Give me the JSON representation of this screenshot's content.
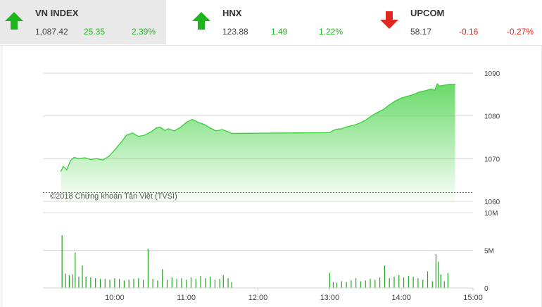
{
  "tickers": [
    {
      "name": "VN INDEX",
      "value": "1,087.42",
      "change": "25.35",
      "percent": "2.39%",
      "direction": "up",
      "icon": "arrow-up-icon",
      "color": "#1fb51f",
      "active": true
    },
    {
      "name": "HNX",
      "value": "123.88",
      "change": "1.49",
      "percent": "1.22%",
      "direction": "up",
      "icon": "arrow-up-icon",
      "color": "#1fb51f",
      "active": false
    },
    {
      "name": "UPCOM",
      "value": "58.17",
      "change": "-0.16",
      "percent": "-0.27%",
      "direction": "down",
      "icon": "arrow-down-icon",
      "color": "#e0261f",
      "active": false
    }
  ],
  "watermark": "©2018 Chứng khoán Tân Việt (TVSI)",
  "chart_data": [
    {
      "type": "area",
      "name": "price",
      "xlim": [
        "09:00",
        "15:00"
      ],
      "ylim": [
        1060,
        1090
      ],
      "y_ticks": [
        "1090",
        "1080",
        "1070",
        "1060"
      ],
      "y_tick_values": [
        1090,
        1080,
        1070,
        1060
      ],
      "reference_line": 1062.07,
      "grid": true,
      "color": "#3fd03f",
      "points": [
        [
          "09:15",
          1067.0
        ],
        [
          "09:17",
          1068.2
        ],
        [
          "09:20",
          1067.4
        ],
        [
          "09:23",
          1069.5
        ],
        [
          "09:26",
          1070.3
        ],
        [
          "09:30",
          1070.0
        ],
        [
          "09:35",
          1070.2
        ],
        [
          "09:40",
          1069.8
        ],
        [
          "09:45",
          1070.0
        ],
        [
          "09:50",
          1069.7
        ],
        [
          "09:55",
          1070.5
        ],
        [
          "10:00",
          1072.0
        ],
        [
          "10:03",
          1073.0
        ],
        [
          "10:06",
          1074.0
        ],
        [
          "10:10",
          1075.5
        ],
        [
          "10:15",
          1076.0
        ],
        [
          "10:20",
          1075.2
        ],
        [
          "10:25",
          1075.5
        ],
        [
          "10:30",
          1076.2
        ],
        [
          "10:35",
          1077.2
        ],
        [
          "10:38",
          1077.4
        ],
        [
          "10:42",
          1076.6
        ],
        [
          "10:45",
          1077.0
        ],
        [
          "10:50",
          1076.5
        ],
        [
          "10:55",
          1077.3
        ],
        [
          "11:00",
          1078.5
        ],
        [
          "11:05",
          1079.2
        ],
        [
          "11:10",
          1078.5
        ],
        [
          "11:15",
          1078.0
        ],
        [
          "11:20",
          1077.2
        ],
        [
          "11:25",
          1076.5
        ],
        [
          "11:30",
          1076.8
        ],
        [
          "11:35",
          1076.3
        ],
        [
          "11:38",
          1075.9
        ],
        [
          "13:00",
          1076.1
        ],
        [
          "13:03",
          1076.6
        ],
        [
          "13:06",
          1076.9
        ],
        [
          "13:10",
          1077.0
        ],
        [
          "13:15",
          1077.5
        ],
        [
          "13:20",
          1077.8
        ],
        [
          "13:25",
          1078.3
        ],
        [
          "13:30",
          1079.0
        ],
        [
          "13:35",
          1080.0
        ],
        [
          "13:40",
          1080.8
        ],
        [
          "13:45",
          1081.5
        ],
        [
          "13:50",
          1082.6
        ],
        [
          "13:55",
          1083.5
        ],
        [
          "14:00",
          1084.2
        ],
        [
          "14:05",
          1084.6
        ],
        [
          "14:10",
          1085.0
        ],
        [
          "14:15",
          1085.6
        ],
        [
          "14:20",
          1085.9
        ],
        [
          "14:25",
          1086.3
        ],
        [
          "14:28",
          1086.0
        ],
        [
          "14:30",
          1087.5
        ],
        [
          "14:32",
          1087.0
        ],
        [
          "14:40",
          1087.4
        ],
        [
          "14:45",
          1087.4
        ]
      ]
    },
    {
      "type": "bar",
      "name": "volume",
      "xlim": [
        "09:00",
        "15:00"
      ],
      "ylim": [
        0,
        10000000
      ],
      "y_ticks": [
        "10M",
        "5M",
        "0"
      ],
      "y_tick_values": [
        10000000,
        5000000,
        0
      ],
      "x_ticks": [
        "10:00",
        "11:00",
        "12:00",
        "13:00",
        "14:00",
        "15:00"
      ],
      "x_tick_values": [
        "10:00",
        "11:00",
        "12:00",
        "13:00",
        "14:00",
        "15:00"
      ],
      "color": "#1fa81f",
      "bars": [
        [
          "09:16",
          7000000
        ],
        [
          "09:19",
          1900000
        ],
        [
          "09:22",
          1700000
        ],
        [
          "09:25",
          1800000
        ],
        [
          "09:27",
          4700000
        ],
        [
          "09:30",
          1500000
        ],
        [
          "09:33",
          3000000
        ],
        [
          "09:36",
          1500000
        ],
        [
          "09:40",
          1400000
        ],
        [
          "09:44",
          1300000
        ],
        [
          "09:48",
          1200000
        ],
        [
          "09:52",
          1200000
        ],
        [
          "09:56",
          1100000
        ],
        [
          "10:00",
          1300000
        ],
        [
          "10:04",
          1200000
        ],
        [
          "10:08",
          1000000
        ],
        [
          "10:12",
          1100000
        ],
        [
          "10:16",
          1200000
        ],
        [
          "10:20",
          1300000
        ],
        [
          "10:24",
          1100000
        ],
        [
          "10:28",
          5200000
        ],
        [
          "10:32",
          1200000
        ],
        [
          "10:36",
          1000000
        ],
        [
          "10:40",
          2500000
        ],
        [
          "10:44",
          1100000
        ],
        [
          "10:48",
          1400000
        ],
        [
          "10:52",
          1200000
        ],
        [
          "10:56",
          1300000
        ],
        [
          "11:00",
          1100000
        ],
        [
          "11:04",
          1400000
        ],
        [
          "11:08",
          1200000
        ],
        [
          "11:12",
          1600000
        ],
        [
          "11:16",
          1300000
        ],
        [
          "11:20",
          1500000
        ],
        [
          "11:24",
          1100000
        ],
        [
          "11:28",
          1200000
        ],
        [
          "11:31",
          1700000
        ],
        [
          "11:35",
          1300000
        ],
        [
          "11:38",
          800000
        ],
        [
          "13:00",
          2000000
        ],
        [
          "13:03",
          800000
        ],
        [
          "13:06",
          700000
        ],
        [
          "13:10",
          900000
        ],
        [
          "13:14",
          800000
        ],
        [
          "13:18",
          1000000
        ],
        [
          "13:22",
          1300000
        ],
        [
          "13:26",
          900000
        ],
        [
          "13:30",
          1000000
        ],
        [
          "13:34",
          1200000
        ],
        [
          "13:38",
          1100000
        ],
        [
          "13:42",
          1400000
        ],
        [
          "13:46",
          3000000
        ],
        [
          "13:50",
          1300000
        ],
        [
          "13:54",
          1500000
        ],
        [
          "13:58",
          1700000
        ],
        [
          "14:02",
          1400000
        ],
        [
          "14:06",
          1600000
        ],
        [
          "14:10",
          1500000
        ],
        [
          "14:14",
          1300000
        ],
        [
          "14:18",
          1100000
        ],
        [
          "14:22",
          2200000
        ],
        [
          "14:26",
          900000
        ],
        [
          "14:29",
          4500000
        ],
        [
          "14:31",
          3500000
        ],
        [
          "14:33",
          1800000
        ],
        [
          "14:36",
          900000
        ],
        [
          "14:39",
          2000000
        ]
      ]
    }
  ]
}
